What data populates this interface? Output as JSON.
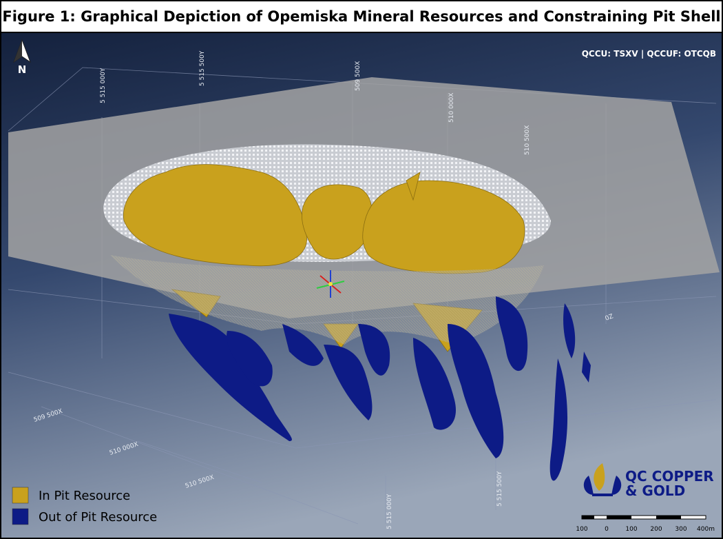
{
  "title": "Figure 1: Graphical Depiction of Opemiska Mineral Resources and Constraining Pit Shell",
  "ticker": "QCCU: TSXV | QCCUF: OTCQB",
  "north": "N",
  "grid_labels": {
    "top": [
      "5 515 000Y",
      "5 515 500Y",
      "509 500X",
      "510 000X",
      "510 500X"
    ],
    "left": [
      "509 500X",
      "510 000X",
      "510 500X"
    ],
    "bottom": [
      "5 515 000Y",
      "5 515 500Y"
    ],
    "right": [
      "0Z"
    ]
  },
  "legend": [
    {
      "label": "In Pit Resource",
      "color": "#c9a11d"
    },
    {
      "label": "Out of Pit Resource",
      "color": "#0d1b86"
    }
  ],
  "logo": [
    "QC COPPER",
    "& GOLD"
  ],
  "scale_bar": [
    100,
    0,
    100,
    200,
    300,
    "400m"
  ]
}
